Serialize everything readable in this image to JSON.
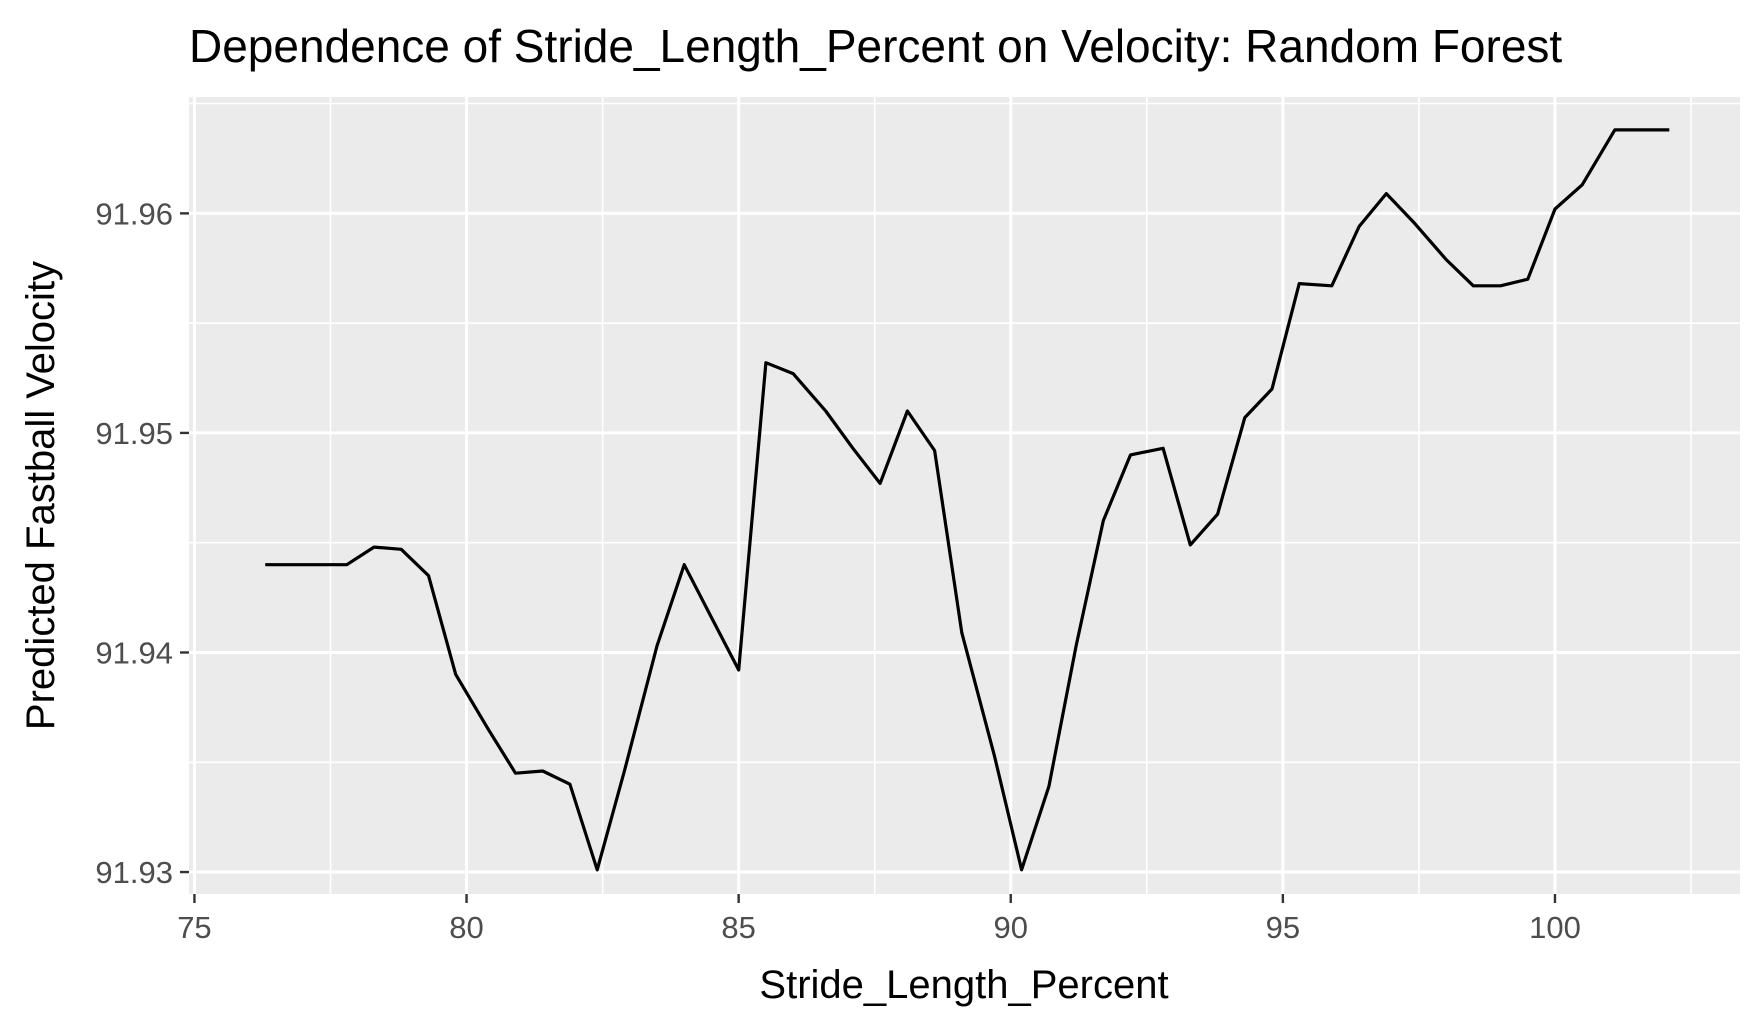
{
  "chart_data": {
    "type": "line",
    "title": "Dependence of Stride_Length_Percent on Velocity: Random Forest",
    "xlabel": "Stride_Length_Percent",
    "ylabel": "Predicted Fastball Velocity",
    "xlim": [
      74.9,
      103.4
    ],
    "ylim": [
      91.929,
      91.9653
    ],
    "x_ticks": [
      75,
      80,
      85,
      90,
      95,
      100
    ],
    "x_tick_labels": [
      "75",
      "80",
      "85",
      "90",
      "95",
      "100"
    ],
    "y_ticks": [
      91.93,
      91.94,
      91.95,
      91.96
    ],
    "y_tick_labels": [
      "91.93",
      "91.94",
      "91.95",
      "91.96"
    ],
    "grid": true,
    "background": "#ebebeb",
    "grid_color": "#ffffff",
    "line_color": "#000000",
    "series": [
      {
        "x": [
          76.3,
          76.8,
          77.3,
          77.8,
          78.3,
          78.8,
          79.3,
          79.8,
          80.4,
          80.9,
          81.4,
          81.9,
          82.4,
          82.9,
          83.5,
          84.0,
          84.5,
          85.0,
          85.5,
          86.0,
          86.6,
          87.1,
          87.6,
          88.1,
          88.6,
          89.1,
          89.7,
          90.2,
          90.7,
          91.2,
          91.7,
          92.2,
          92.8,
          93.3,
          93.8,
          94.3,
          94.8,
          95.3,
          95.9,
          96.4,
          96.9,
          97.4,
          98.0,
          98.5,
          99.0,
          99.5,
          100.0,
          100.5,
          101.1,
          101.6,
          102.1
        ],
        "y": [
          91.944,
          91.944,
          91.944,
          91.944,
          91.9448,
          91.9447,
          91.9435,
          91.939,
          91.9365,
          91.9345,
          91.9346,
          91.934,
          91.9301,
          91.9346,
          91.9403,
          91.944,
          91.9416,
          91.9392,
          91.9532,
          91.9527,
          91.951,
          91.9493,
          91.9477,
          91.951,
          91.9492,
          91.9409,
          91.9353,
          91.9301,
          91.9339,
          91.9403,
          91.946,
          91.949,
          91.9493,
          91.9449,
          91.9463,
          91.9507,
          91.952,
          91.9568,
          91.9567,
          91.9594,
          91.9609,
          91.9596,
          91.9579,
          91.9567,
          91.9567,
          91.957,
          91.9602,
          91.9613,
          91.9638,
          91.9638,
          91.9638
        ]
      }
    ]
  }
}
